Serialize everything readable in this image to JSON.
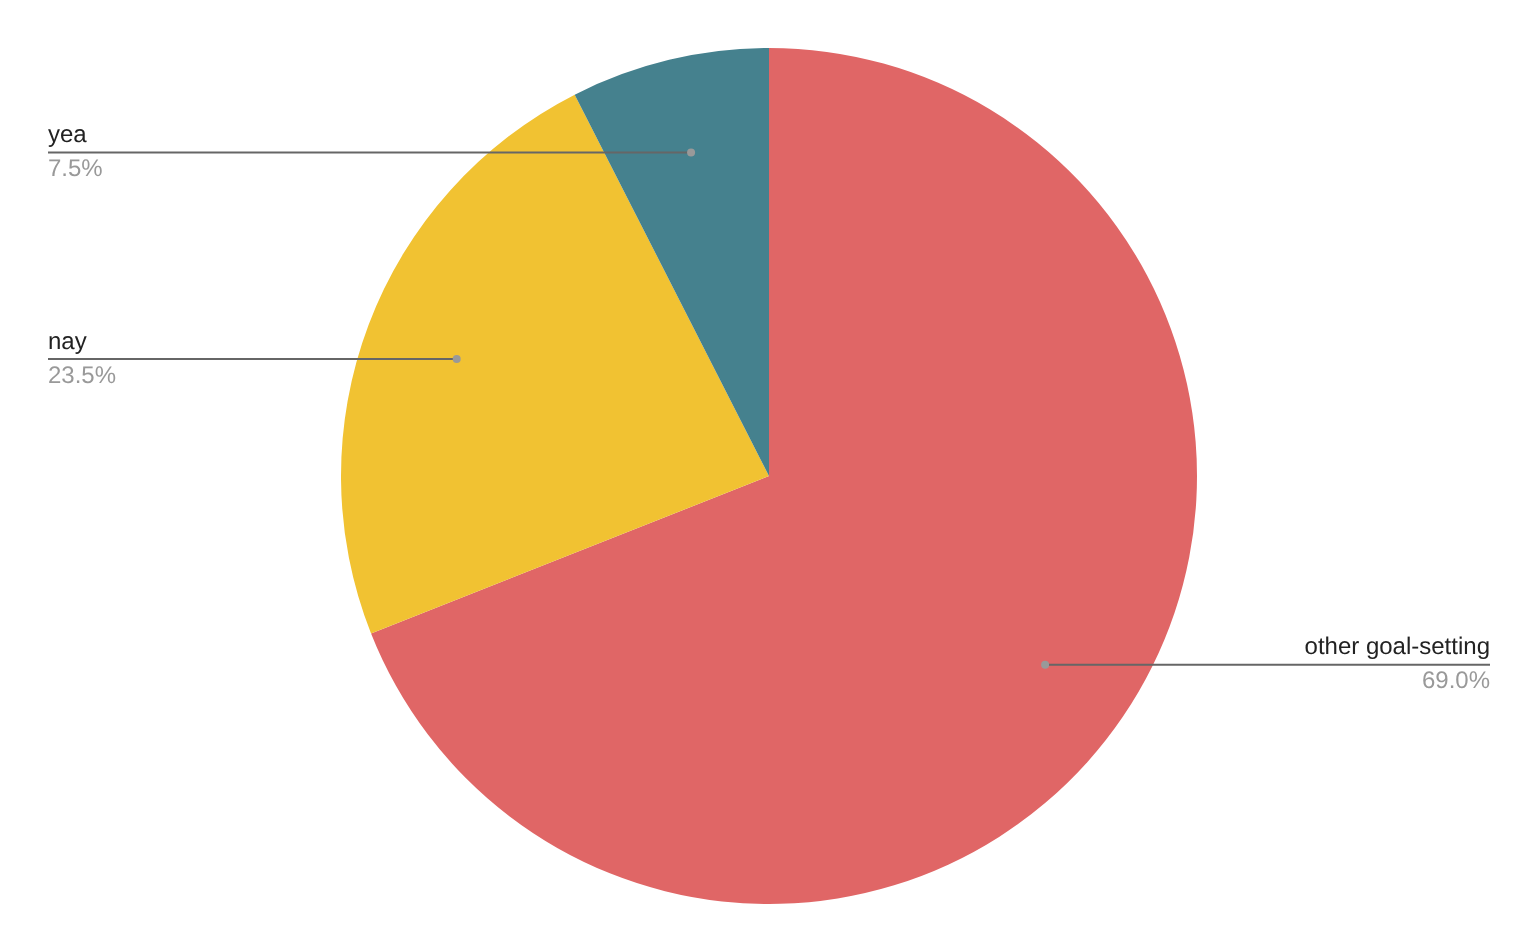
{
  "chart_data": {
    "type": "pie",
    "categories": [
      "other goal-setting",
      "nay",
      "yea"
    ],
    "values": [
      69.0,
      23.5,
      7.5
    ],
    "value_labels": [
      "69.0%",
      "23.5%",
      "7.5%"
    ],
    "colors": [
      "#e06666",
      "#f1c232",
      "#45818e"
    ],
    "legend": false
  }
}
